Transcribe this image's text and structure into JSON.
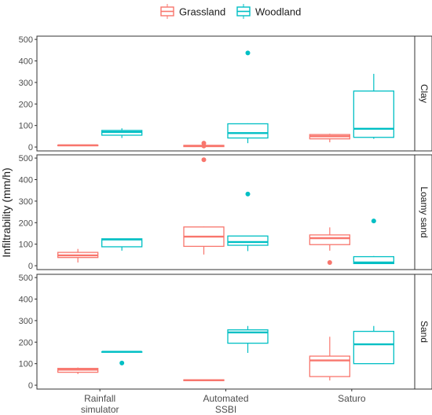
{
  "chart_data": {
    "type": "boxplot",
    "ylabel": "Infiltrability (mm/h)",
    "categories": [
      "Rainfall\nsimulator",
      "Automated\nSSBI",
      "Saturo"
    ],
    "legend": {
      "placement": "top",
      "entries": [
        {
          "name": "Grassland",
          "color": "#F8766D"
        },
        {
          "name": "Woodland",
          "color": "#00BFC4"
        }
      ]
    },
    "panels": [
      {
        "label": "Clay",
        "ylim": [
          -18,
          515
        ],
        "yticks": [
          0,
          100,
          200,
          300,
          400,
          500
        ],
        "boxes": [
          {
            "category": "Rainfall\nsimulator",
            "series": "Grassland",
            "min": 4,
            "q1": 6,
            "median": 8,
            "q3": 9,
            "max": 11,
            "outliers": []
          },
          {
            "category": "Rainfall\nsimulator",
            "series": "Woodland",
            "min": 42,
            "q1": 55,
            "median": 70,
            "q3": 77,
            "max": 87,
            "outliers": []
          },
          {
            "category": "Automated\nSSBI",
            "series": "Grassland",
            "min": 1,
            "q1": 2,
            "median": 5,
            "q3": 8,
            "max": 10,
            "outliers": [
              5,
              18
            ]
          },
          {
            "category": "Automated\nSSBI",
            "series": "Woodland",
            "min": 18,
            "q1": 42,
            "median": 65,
            "q3": 108,
            "max": 110,
            "outliers": [
              437
            ]
          },
          {
            "category": "Saturo",
            "series": "Grassland",
            "min": 22,
            "q1": 38,
            "median": 50,
            "q3": 58,
            "max": 62,
            "outliers": []
          },
          {
            "category": "Saturo",
            "series": "Woodland",
            "min": 38,
            "q1": 45,
            "median": 85,
            "q3": 260,
            "max": 340,
            "outliers": []
          }
        ]
      },
      {
        "label": "Loamy sand",
        "ylim": [
          -18,
          515
        ],
        "yticks": [
          0,
          100,
          200,
          300,
          400,
          500
        ],
        "boxes": [
          {
            "category": "Rainfall\nsimulator",
            "series": "Grassland",
            "min": 15,
            "q1": 38,
            "median": 48,
            "q3": 62,
            "max": 78,
            "outliers": []
          },
          {
            "category": "Rainfall\nsimulator",
            "series": "Woodland",
            "min": 70,
            "q1": 88,
            "median": 122,
            "q3": 125,
            "max": 125,
            "outliers": []
          },
          {
            "category": "Automated\nSSBI",
            "series": "Grassland",
            "min": 52,
            "q1": 90,
            "median": 135,
            "q3": 180,
            "max": 182,
            "outliers": [
              492
            ]
          },
          {
            "category": "Automated\nSSBI",
            "series": "Woodland",
            "min": 68,
            "q1": 95,
            "median": 110,
            "q3": 138,
            "max": 138,
            "outliers": [
              333
            ]
          },
          {
            "category": "Saturo",
            "series": "Grassland",
            "min": 70,
            "q1": 98,
            "median": 128,
            "q3": 143,
            "max": 178,
            "outliers": [
              15
            ]
          },
          {
            "category": "Saturo",
            "series": "Woodland",
            "min": 8,
            "q1": 10,
            "median": 15,
            "q3": 42,
            "max": 45,
            "outliers": [
              208
            ]
          }
        ]
      },
      {
        "label": "Sand",
        "ylim": [
          -18,
          515
        ],
        "yticks": [
          0,
          100,
          200,
          300,
          400,
          500
        ],
        "boxes": [
          {
            "category": "Rainfall\nsimulator",
            "series": "Grassland",
            "min": 52,
            "q1": 60,
            "median": 72,
            "q3": 78,
            "max": 82,
            "outliers": []
          },
          {
            "category": "Rainfall\nsimulator",
            "series": "Woodland",
            "min": 155,
            "q1": 155,
            "median": 155,
            "q3": 155,
            "max": 155,
            "outliers": [
              103
            ]
          },
          {
            "category": "Automated\nSSBI",
            "series": "Grassland",
            "min": 20,
            "q1": 21,
            "median": 23,
            "q3": 25,
            "max": 26,
            "outliers": []
          },
          {
            "category": "Automated\nSSBI",
            "series": "Woodland",
            "min": 150,
            "q1": 195,
            "median": 245,
            "q3": 257,
            "max": 275,
            "outliers": []
          },
          {
            "category": "Saturo",
            "series": "Grassland",
            "min": 22,
            "q1": 40,
            "median": 115,
            "q3": 135,
            "max": 225,
            "outliers": []
          },
          {
            "category": "Saturo",
            "series": "Woodland",
            "min": 100,
            "q1": 100,
            "median": 190,
            "q3": 250,
            "max": 275,
            "outliers": []
          }
        ]
      }
    ]
  }
}
